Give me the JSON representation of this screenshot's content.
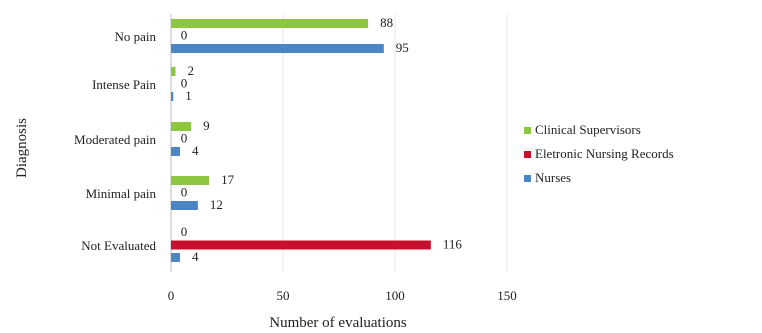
{
  "chart_data": {
    "type": "bar",
    "orientation": "horizontal",
    "categories": [
      "No pain",
      "Intense Pain",
      "Moderated pain",
      "Minimal pain",
      "Not Evaluated"
    ],
    "series": [
      {
        "name": "Clinical Supervisors",
        "color": "#8dc63f",
        "values": [
          88,
          2,
          9,
          17,
          0
        ]
      },
      {
        "name": "Eletronic Nursing Records",
        "color": "#c8102e",
        "values": [
          0,
          0,
          0,
          0,
          116
        ]
      },
      {
        "name": "Nurses",
        "color": "#4a86c5",
        "values": [
          95,
          1,
          4,
          12,
          4
        ]
      }
    ],
    "data_labels": [
      [
        "88",
        "0",
        "95"
      ],
      [
        "2",
        "0",
        "1"
      ],
      [
        "9",
        "0",
        "4"
      ],
      [
        "17",
        "0",
        "12"
      ],
      [
        "0",
        "116",
        "4"
      ]
    ],
    "xlabel": "Number of evaluations",
    "ylabel": "Diagnosis",
    "xlim": [
      0,
      150
    ],
    "xticks": [
      "0",
      "50",
      "100",
      "150"
    ],
    "grid": true,
    "legend_position": "right"
  }
}
